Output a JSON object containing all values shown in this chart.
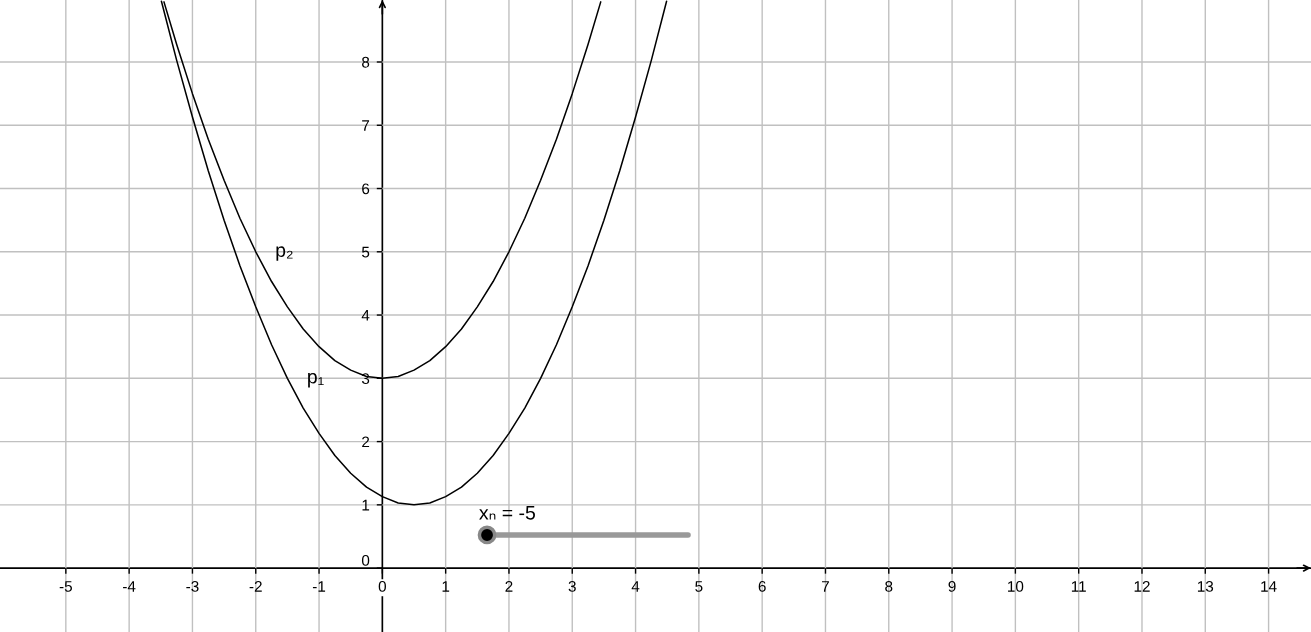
{
  "chart_data": {
    "type": "line",
    "series": [
      {
        "name": "p₁",
        "color": "#000000",
        "x": [
          -3.49,
          -3.25,
          -3,
          -2.75,
          -2.5,
          -2.25,
          -2,
          -1.75,
          -1.5,
          -1.25,
          -1,
          -0.75,
          -0.5,
          -0.25,
          0,
          0.25,
          0.5,
          0.75,
          1,
          1.25,
          1.5,
          1.75,
          2,
          2.25,
          2.5,
          2.75,
          3,
          3.25,
          3.5,
          3.75,
          4,
          4.25,
          4.49
        ],
        "values": [
          8.96,
          8.03,
          7.13,
          6.28,
          5.5,
          4.78,
          4.13,
          3.53,
          3,
          2.53,
          2.13,
          1.78,
          1.5,
          1.28,
          1.13,
          1.03,
          1,
          1.03,
          1.13,
          1.28,
          1.5,
          1.78,
          2.13,
          2.53,
          3,
          3.53,
          4.13,
          4.78,
          5.5,
          6.28,
          7.13,
          8.03,
          8.96
        ]
      },
      {
        "name": "p₂",
        "color": "#000000",
        "x": [
          -3.45,
          -3.25,
          -3,
          -2.75,
          -2.5,
          -2.25,
          -2,
          -1.75,
          -1.5,
          -1.25,
          -1,
          -0.75,
          -0.5,
          -0.25,
          0,
          0.25,
          0.5,
          0.75,
          1,
          1.25,
          1.5,
          1.75,
          2,
          2.25,
          2.5,
          2.75,
          3,
          3.25,
          3.45
        ],
        "values": [
          8.95,
          8.28,
          7.5,
          6.78,
          6.13,
          5.53,
          5,
          4.53,
          4.13,
          3.78,
          3.5,
          3.28,
          3.13,
          3.03,
          3,
          3.03,
          3.13,
          3.28,
          3.5,
          3.78,
          4.13,
          4.53,
          5,
          5.53,
          6.13,
          6.78,
          7.5,
          8.28,
          8.95
        ]
      }
    ],
    "xlim": [
      -6.04,
      14.67
    ],
    "ylim": [
      -1.01,
      8.98
    ],
    "xticks": [
      -5,
      -4,
      -3,
      -2,
      -1,
      0,
      1,
      2,
      3,
      4,
      5,
      6,
      7,
      8,
      9,
      10,
      11,
      12,
      13,
      14
    ],
    "yticks": [
      0,
      1,
      2,
      3,
      4,
      5,
      6,
      7,
      8
    ],
    "grid": true,
    "line_style": "solid",
    "annotations": [
      "xₙ = -5"
    ]
  }
}
